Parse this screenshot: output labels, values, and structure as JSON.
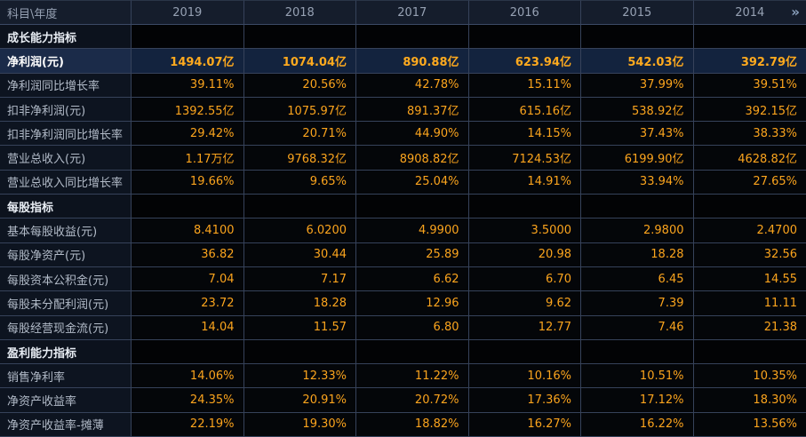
{
  "colors": {
    "value_orange": "#fba41d",
    "highlight_value_orange": "#ffaa1e",
    "highlight_row_bg": "#13233e",
    "header_bg": "#151d2c",
    "label_col_bg": "#0d1420",
    "border": "#36425a"
  },
  "header": {
    "corner_label": "科目\\年度",
    "years": [
      "2019",
      "2018",
      "2017",
      "2016",
      "2015",
      "2014"
    ],
    "more_icon": "»"
  },
  "rows": [
    {
      "type": "section",
      "label": "成长能力指标",
      "values": [
        "",
        "",
        "",
        "",
        "",
        ""
      ]
    },
    {
      "type": "highlight",
      "label": "净利润(元)",
      "values": [
        "1494.07亿",
        "1074.04亿",
        "890.88亿",
        "623.94亿",
        "542.03亿",
        "392.79亿"
      ]
    },
    {
      "type": "data",
      "label": "净利润同比增长率",
      "values": [
        "39.11%",
        "20.56%",
        "42.78%",
        "15.11%",
        "37.99%",
        "39.51%"
      ]
    },
    {
      "type": "data",
      "label": "扣非净利润(元)",
      "values": [
        "1392.55亿",
        "1075.97亿",
        "891.37亿",
        "615.16亿",
        "538.92亿",
        "392.15亿"
      ]
    },
    {
      "type": "data",
      "label": "扣非净利润同比增长率",
      "values": [
        "29.42%",
        "20.71%",
        "44.90%",
        "14.15%",
        "37.43%",
        "38.33%"
      ]
    },
    {
      "type": "data",
      "label": "营业总收入(元)",
      "values": [
        "1.17万亿",
        "9768.32亿",
        "8908.82亿",
        "7124.53亿",
        "6199.90亿",
        "4628.82亿"
      ]
    },
    {
      "type": "data",
      "label": "营业总收入同比增长率",
      "values": [
        "19.66%",
        "9.65%",
        "25.04%",
        "14.91%",
        "33.94%",
        "27.65%"
      ]
    },
    {
      "type": "section",
      "label": "每股指标",
      "values": [
        "",
        "",
        "",
        "",
        "",
        ""
      ]
    },
    {
      "type": "data",
      "label": "基本每股收益(元)",
      "values": [
        "8.4100",
        "6.0200",
        "4.9900",
        "3.5000",
        "2.9800",
        "2.4700"
      ]
    },
    {
      "type": "data",
      "label": "每股净资产(元)",
      "values": [
        "36.82",
        "30.44",
        "25.89",
        "20.98",
        "18.28",
        "32.56"
      ]
    },
    {
      "type": "data",
      "label": "每股资本公积金(元)",
      "values": [
        "7.04",
        "7.17",
        "6.62",
        "6.70",
        "6.45",
        "14.55"
      ]
    },
    {
      "type": "data",
      "label": "每股未分配利润(元)",
      "values": [
        "23.72",
        "18.28",
        "12.96",
        "9.62",
        "7.39",
        "11.11"
      ]
    },
    {
      "type": "data",
      "label": "每股经营现金流(元)",
      "values": [
        "14.04",
        "11.57",
        "6.80",
        "12.77",
        "7.46",
        "21.38"
      ]
    },
    {
      "type": "section",
      "label": "盈利能力指标",
      "values": [
        "",
        "",
        "",
        "",
        "",
        ""
      ]
    },
    {
      "type": "data",
      "label": "销售净利率",
      "values": [
        "14.06%",
        "12.33%",
        "11.22%",
        "10.16%",
        "10.51%",
        "10.35%"
      ]
    },
    {
      "type": "data",
      "label": "净资产收益率",
      "values": [
        "24.35%",
        "20.91%",
        "20.72%",
        "17.36%",
        "17.12%",
        "18.30%"
      ]
    },
    {
      "type": "data",
      "label": "净资产收益率-摊薄",
      "values": [
        "22.19%",
        "19.30%",
        "18.82%",
        "16.27%",
        "16.22%",
        "13.56%"
      ]
    }
  ]
}
